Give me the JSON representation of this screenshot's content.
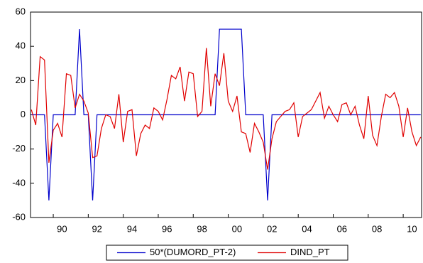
{
  "chart_data": {
    "type": "line",
    "x": [
      1988.75,
      1989,
      1989.25,
      1989.5,
      1989.75,
      1990,
      1990.25,
      1990.5,
      1990.75,
      1991,
      1991.25,
      1991.5,
      1991.75,
      1992,
      1992.25,
      1992.5,
      1992.75,
      1993,
      1993.25,
      1993.5,
      1993.75,
      1994,
      1994.25,
      1994.5,
      1994.75,
      1995,
      1995.25,
      1995.5,
      1995.75,
      1996,
      1996.25,
      1996.5,
      1996.75,
      1997,
      1997.25,
      1997.5,
      1997.75,
      1998,
      1998.25,
      1998.5,
      1998.75,
      1999,
      1999.25,
      1999.5,
      1999.75,
      2000,
      2000.25,
      2000.5,
      2000.75,
      2001,
      2001.25,
      2001.5,
      2001.75,
      2002,
      2002.25,
      2002.5,
      2002.75,
      2003,
      2003.25,
      2003.5,
      2003.75,
      2004,
      2004.25,
      2004.5,
      2004.75,
      2005,
      2005.25,
      2005.5,
      2005.75,
      2006,
      2006.25,
      2006.5,
      2006.75,
      2007,
      2007.25,
      2007.5,
      2007.75,
      2008,
      2008.25,
      2008.5,
      2008.75,
      2009,
      2009.25,
      2009.5,
      2009.75,
      2010,
      2010.25,
      2010.5,
      2010.75,
      2011
    ],
    "series": [
      {
        "name": "50*(DUMORD_PT-2)",
        "color": "#0000cc",
        "values": [
          0,
          0,
          0,
          0,
          -50,
          0,
          0,
          0,
          0,
          0,
          0,
          50,
          0,
          0,
          -50,
          0,
          0,
          0,
          0,
          0,
          0,
          0,
          0,
          0,
          0,
          0,
          0,
          0,
          0,
          0,
          0,
          0,
          0,
          0,
          0,
          0,
          0,
          0,
          0,
          0,
          0,
          0,
          0,
          50,
          50,
          50,
          50,
          50,
          50,
          0,
          0,
          0,
          0,
          0,
          -50,
          0,
          0,
          0,
          0,
          0,
          0,
          0,
          0,
          0,
          0,
          0,
          0,
          0,
          0,
          0,
          0,
          0,
          0,
          0,
          0,
          0,
          0,
          0,
          0,
          0,
          0,
          0,
          0,
          0,
          0,
          0,
          0,
          0,
          0,
          0
        ]
      },
      {
        "name": "DIND_PT",
        "color": "#e00000",
        "values": [
          3,
          -6,
          34,
          32,
          -28,
          -9,
          -5,
          -13,
          24,
          23,
          4,
          12,
          8,
          1,
          -25,
          -24,
          -8,
          0,
          -1,
          -8,
          12,
          -16,
          2,
          3,
          -24,
          -11,
          -6,
          -8,
          4,
          2,
          -3,
          9,
          23,
          21,
          28,
          8,
          25,
          24,
          -1,
          2,
          39,
          5,
          24,
          17,
          36,
          8,
          2,
          11,
          -10,
          -11,
          -22,
          -5,
          -10,
          -16,
          -32,
          -14,
          -4,
          -1,
          2,
          3,
          7,
          -13,
          -1,
          1,
          3,
          8,
          13,
          -2,
          5,
          0,
          -4,
          6,
          7,
          0,
          5,
          -6,
          -14,
          11,
          -12,
          -18,
          -1,
          12,
          10,
          13,
          5,
          -13,
          4,
          -10,
          -18,
          -13
        ]
      }
    ],
    "xlim": [
      1988.7,
      2011.05
    ],
    "xticks": [
      {
        "value": 1990,
        "label": "90"
      },
      {
        "value": 1992,
        "label": "92"
      },
      {
        "value": 1994,
        "label": "94"
      },
      {
        "value": 1996,
        "label": "96"
      },
      {
        "value": 1998,
        "label": "98"
      },
      {
        "value": 2000,
        "label": "00"
      },
      {
        "value": 2002,
        "label": "02"
      },
      {
        "value": 2004,
        "label": "04"
      },
      {
        "value": 2006,
        "label": "06"
      },
      {
        "value": 2008,
        "label": "08"
      },
      {
        "value": 2010,
        "label": "10"
      }
    ],
    "ylim": [
      -60,
      60
    ],
    "yticks": [
      -60,
      -40,
      -20,
      0,
      20,
      40,
      60
    ],
    "grid": false
  }
}
